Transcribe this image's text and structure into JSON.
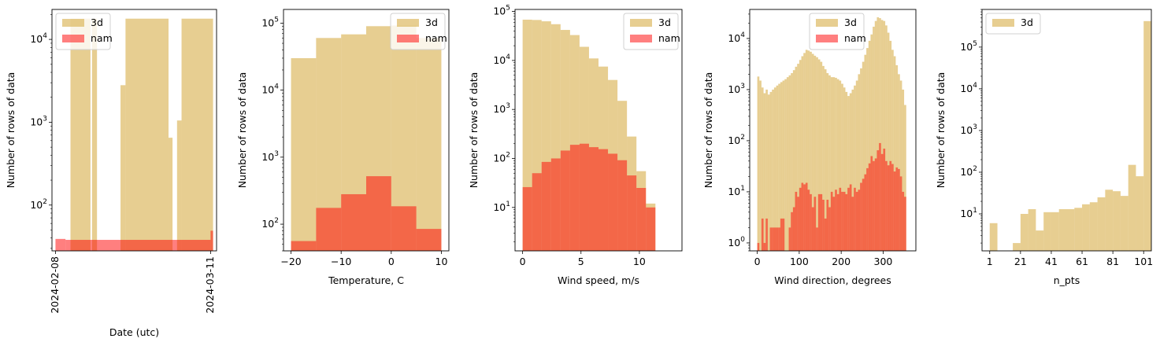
{
  "colors": {
    "series_3d": "#e8c77e",
    "series_nam": "#f46a62",
    "series_nam_alpha": 0.5
  },
  "chart_data": [
    {
      "type": "bar",
      "title": "",
      "xlabel": "Date (utc)",
      "ylabel": "Number of rows of data",
      "yscale": "log",
      "ylim": [
        28,
        23000
      ],
      "y_ticks": [
        {
          "v": 100,
          "label": "10^2"
        },
        {
          "v": 1000,
          "label": "10^3"
        },
        {
          "v": 10000,
          "label": "10^4"
        }
      ],
      "xlim": [
        -0.7,
        32.2
      ],
      "x_ticks": [
        {
          "v": 0,
          "label": "2024-02-08"
        },
        {
          "v": 31,
          "label": "2024-03-11"
        }
      ],
      "x_tick_rotation": -90,
      "legend": "upper-left",
      "series": [
        {
          "name": "3d",
          "bins": [
            {
              "x0": 3,
              "x1": 7,
              "y": 17800
            },
            {
              "x0": 7.3,
              "x1": 8.3,
              "y": 17800
            },
            {
              "x0": 13,
              "x1": 14,
              "y": 2800
            },
            {
              "x0": 14,
              "x1": 22.6,
              "y": 17800
            },
            {
              "x0": 22.6,
              "x1": 23.4,
              "y": 650
            },
            {
              "x0": 24.3,
              "x1": 25.2,
              "y": 1050
            },
            {
              "x0": 25.2,
              "x1": 31.5,
              "y": 17800
            }
          ]
        },
        {
          "name": "nam",
          "bins": [
            {
              "x0": 0,
              "x1": 2,
              "y": 39
            },
            {
              "x0": 2,
              "x1": 31,
              "y": 38
            },
            {
              "x0": 31,
              "x1": 31.5,
              "y": 49
            }
          ]
        }
      ]
    },
    {
      "type": "bar",
      "title": "",
      "xlabel": "Temperature, C",
      "ylabel": "Number of rows of data",
      "yscale": "log",
      "ylim": [
        40,
        160000
      ],
      "y_ticks": [
        {
          "v": 100,
          "label": "10^2"
        },
        {
          "v": 1000,
          "label": "10^3"
        },
        {
          "v": 10000,
          "label": "10^4"
        },
        {
          "v": 100000,
          "label": "10^5"
        }
      ],
      "xlim": [
        -21.5,
        11.5
      ],
      "x_ticks": [
        {
          "v": -20,
          "label": "−20"
        },
        {
          "v": -10,
          "label": "−10"
        },
        {
          "v": 0,
          "label": "0"
        },
        {
          "v": 10,
          "label": "10"
        }
      ],
      "legend": "upper-right",
      "series": [
        {
          "name": "3d",
          "bins": [
            {
              "x0": -20,
              "x1": -15,
              "y": 30000
            },
            {
              "x0": -15,
              "x1": -10,
              "y": 60000
            },
            {
              "x0": -10,
              "x1": -5,
              "y": 68000
            },
            {
              "x0": -5,
              "x1": 0,
              "y": 90000
            },
            {
              "x0": 0,
              "x1": 5,
              "y": 92000
            },
            {
              "x0": 5,
              "x1": 10,
              "y": 60000
            }
          ]
        },
        {
          "name": "nam",
          "bins": [
            {
              "x0": -20,
              "x1": -15,
              "y": 56
            },
            {
              "x0": -15,
              "x1": -10,
              "y": 175
            },
            {
              "x0": -10,
              "x1": -5,
              "y": 280
            },
            {
              "x0": -5,
              "x1": 0,
              "y": 520
            },
            {
              "x0": 0,
              "x1": 5,
              "y": 185
            },
            {
              "x0": 5,
              "x1": 10,
              "y": 85
            }
          ]
        }
      ]
    },
    {
      "type": "bar",
      "title": "",
      "xlabel": "Wind speed, m/s",
      "ylabel": "Number of rows of data",
      "yscale": "log",
      "ylim": [
        1.3,
        110000
      ],
      "y_ticks": [
        {
          "v": 10,
          "label": "10^1"
        },
        {
          "v": 100,
          "label": "10^2"
        },
        {
          "v": 1000,
          "label": "10^3"
        },
        {
          "v": 10000,
          "label": "10^4"
        },
        {
          "v": 100000,
          "label": "10^5"
        }
      ],
      "xlim": [
        -0.65,
        13.65
      ],
      "x_ticks": [
        {
          "v": 0,
          "label": "0"
        },
        {
          "v": 5,
          "label": "5"
        },
        {
          "v": 10,
          "label": "10"
        }
      ],
      "legend": "upper-right",
      "bin_width": 0.8125,
      "bin_start": 0,
      "series": [
        {
          "name": "3d",
          "values": [
            68000,
            67000,
            63000,
            55000,
            42000,
            33000,
            19000,
            11000,
            7500,
            4000,
            1500,
            280,
            55,
            12
          ]
        },
        {
          "name": "nam",
          "values": [
            26,
            50,
            85,
            100,
            145,
            190,
            200,
            170,
            155,
            125,
            92,
            45,
            25,
            10
          ]
        }
      ]
    },
    {
      "type": "bar",
      "title": "",
      "xlabel": "Wind direction, degrees",
      "ylabel": "Number of rows of data",
      "yscale": "log",
      "ylim": [
        0.7,
        37000
      ],
      "y_ticks": [
        {
          "v": 1,
          "label": "10^0"
        },
        {
          "v": 10,
          "label": "10^1"
        },
        {
          "v": 100,
          "label": "10^2"
        },
        {
          "v": 1000,
          "label": "10^3"
        },
        {
          "v": 10000,
          "label": "10^4"
        }
      ],
      "xlim": [
        -18,
        378
      ],
      "x_ticks": [
        {
          "v": 0,
          "label": "0"
        },
        {
          "v": 100,
          "label": "100"
        },
        {
          "v": 200,
          "label": "200"
        },
        {
          "v": 300,
          "label": "300"
        }
      ],
      "legend": "upper-center",
      "bin_width": 5,
      "bin_start": 0,
      "series": [
        {
          "name": "3d",
          "values": [
            1800,
            1500,
            1100,
            850,
            1000,
            800,
            900,
            1000,
            1100,
            1200,
            1300,
            1400,
            1500,
            1600,
            1750,
            1900,
            2100,
            2400,
            2800,
            3200,
            3800,
            4500,
            5200,
            6000,
            5800,
            5500,
            5000,
            4600,
            4300,
            3900,
            3500,
            2900,
            2500,
            2100,
            1900,
            1750,
            1750,
            1700,
            1600,
            1500,
            1300,
            1100,
            900,
            750,
            850,
            1000,
            1200,
            1500,
            2000,
            2600,
            3500,
            4800,
            6500,
            9000,
            12000,
            17000,
            22000,
            26000,
            25000,
            23000,
            22000,
            18000,
            13000,
            9000,
            6000,
            4500,
            3000,
            2000,
            1500,
            1000,
            500
          ],
          "mask": null
        },
        {
          "name": "nam",
          "values": [
            1,
            1,
            3,
            1,
            3,
            1,
            2,
            2,
            2,
            2,
            2,
            3,
            3,
            5,
            2,
            2,
            4,
            5,
            10,
            8,
            12,
            15,
            14,
            15,
            11,
            9,
            5,
            8,
            2,
            9,
            9,
            7,
            3,
            7,
            5,
            10,
            8,
            11,
            9,
            12,
            10,
            10,
            9,
            12,
            14,
            8,
            12,
            10,
            11,
            15,
            18,
            22,
            29,
            36,
            50,
            40,
            45,
            65,
            90,
            55,
            70,
            40,
            33,
            40,
            35,
            25,
            30,
            28,
            20,
            10,
            8
          ],
          "empty": [
            1,
            5,
            13,
            14
          ]
        }
      ]
    },
    {
      "type": "bar",
      "title": "",
      "xlabel": "n_pts",
      "ylabel": "Number of rows of data",
      "yscale": "log",
      "ylim": [
        1.3,
        800000
      ],
      "y_ticks": [
        {
          "v": 10,
          "label": "10^1"
        },
        {
          "v": 100,
          "label": "10^2"
        },
        {
          "v": 1000,
          "label": "10^3"
        },
        {
          "v": 10000,
          "label": "10^4"
        },
        {
          "v": 100000,
          "label": "10^5"
        }
      ],
      "xlim": [
        -4,
        106
      ],
      "x_ticks": [
        {
          "v": 1,
          "label": "1"
        },
        {
          "v": 21,
          "label": "21"
        },
        {
          "v": 41,
          "label": "41"
        },
        {
          "v": 61,
          "label": "61"
        },
        {
          "v": 81,
          "label": "81"
        },
        {
          "v": 101,
          "label": "101"
        }
      ],
      "legend": "upper-left",
      "bin_width": 5,
      "bin_start": 1,
      "series": [
        {
          "name": "3d",
          "values": [
            6,
            0,
            0,
            2,
            10,
            13,
            4,
            11,
            11,
            13,
            13,
            14,
            17,
            19,
            25,
            38,
            35,
            27,
            150,
            80,
            420000
          ]
        }
      ]
    }
  ]
}
